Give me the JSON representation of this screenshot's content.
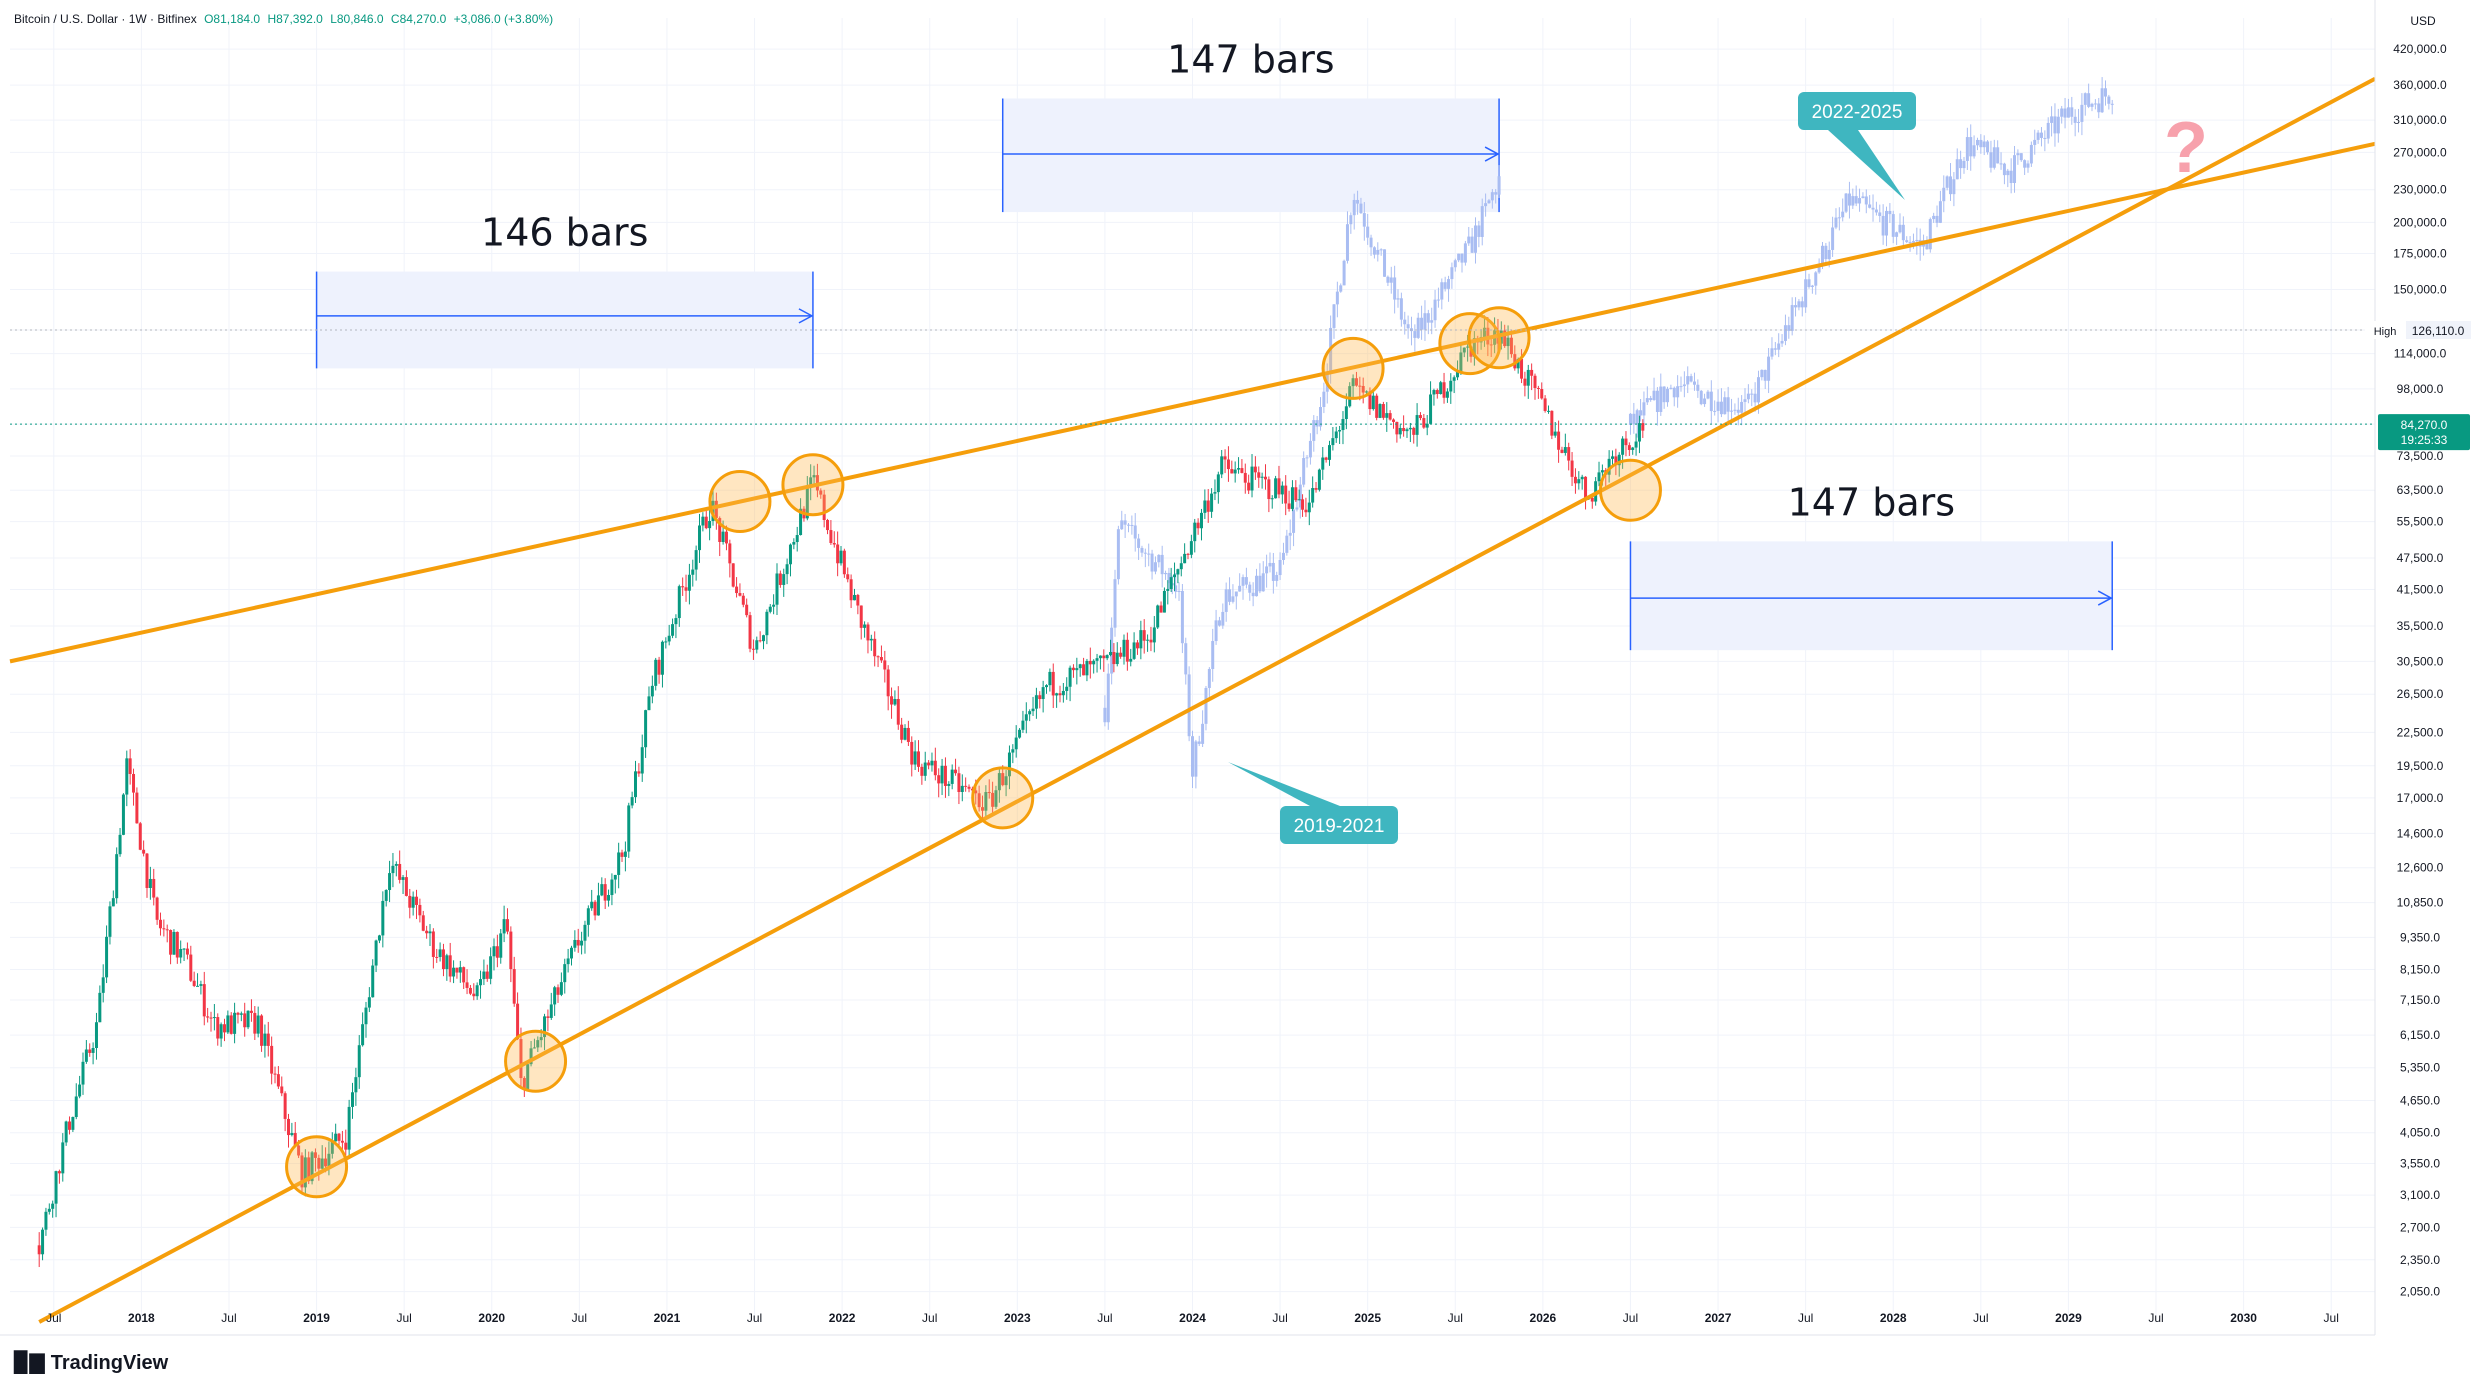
{
  "header": {
    "symbol": "Bitcoin / U.S. Dollar · 1W · Bitfinex",
    "open": "O81,184.0",
    "high": "H87,392.0",
    "low": "L80,846.0",
    "close": "C84,270.0",
    "change": "+3,086.0 (+3.80%)"
  },
  "brand": "TradingView",
  "price_axis": {
    "currency": "USD",
    "ticks": [
      "420,000.0",
      "360,000.0",
      "310,000.0",
      "270,000.0",
      "230,000.0",
      "200,000.0",
      "175,000.0",
      "150,000.0",
      "126,110.0",
      "114,000.0",
      "98,000.0",
      "84,270.0",
      "73,500.0",
      "63,500.0",
      "55,500.0",
      "47,500.0",
      "41,500.0",
      "35,500.0",
      "30,500.0",
      "26,500.0",
      "22,500.0",
      "19,500.0",
      "17,000.0",
      "14,600.0",
      "12,600.0",
      "10,850.0",
      "9,350.0",
      "8,150.0",
      "7,150.0",
      "6,150.0",
      "5,350.0",
      "4,650.0",
      "4,050.0",
      "3,550.0",
      "3,100.0",
      "2,700.0",
      "2,350.0",
      "2,050.0"
    ],
    "high_label": "High",
    "high_value": "126,110.0",
    "last_value": "84,270.0",
    "countdown": "19:25:33"
  },
  "time_axis": {
    "labels": [
      "Jul",
      "2018",
      "Jul",
      "2019",
      "Jul",
      "2020",
      "Jul",
      "2021",
      "Jul",
      "2022",
      "Jul",
      "2023",
      "Jul",
      "2024",
      "Jul",
      "2025",
      "Jul",
      "2026",
      "Jul",
      "2027",
      "Jul",
      "2028",
      "Jul",
      "2029",
      "Jul",
      "2030",
      "Jul"
    ]
  },
  "annotations": {
    "range1": "146 bars",
    "range2": "147 bars",
    "range3": "147 bars",
    "callout1": "2019-2021",
    "callout2": "2022-2025",
    "question": "?"
  },
  "colors": {
    "up": "#089981",
    "down": "#f23645",
    "ghost": "#a9bdf2",
    "trend": "#f59e0b",
    "range": "#2962ff",
    "callout": "#3fb6c0",
    "question": "#f7a1ac"
  },
  "chart_data": {
    "type": "candlestick",
    "interval": "1W",
    "scale": "log",
    "ylim": [
      1800,
      480000
    ],
    "xlim": [
      "2017-04",
      "2030-10"
    ],
    "price_path": [
      {
        "t": "2017-06",
        "close": 2500
      },
      {
        "t": "2017-08",
        "close": 4200
      },
      {
        "t": "2017-10",
        "close": 6500
      },
      {
        "t": "2017-12",
        "close": 19500
      },
      {
        "t": "2018-02",
        "close": 10000
      },
      {
        "t": "2018-04",
        "close": 8500
      },
      {
        "t": "2018-06",
        "close": 6400
      },
      {
        "t": "2018-09",
        "close": 6500
      },
      {
        "t": "2018-12",
        "close": 3400
      },
      {
        "t": "2019-03",
        "close": 4000
      },
      {
        "t": "2019-06",
        "close": 13000
      },
      {
        "t": "2019-09",
        "close": 9000
      },
      {
        "t": "2019-12",
        "close": 7200
      },
      {
        "t": "2020-02",
        "close": 10000
      },
      {
        "t": "2020-03",
        "close": 5000
      },
      {
        "t": "2020-07",
        "close": 9300
      },
      {
        "t": "2020-10",
        "close": 13500
      },
      {
        "t": "2020-12",
        "close": 28000
      },
      {
        "t": "2021-04",
        "close": 60000
      },
      {
        "t": "2021-07",
        "close": 32000
      },
      {
        "t": "2021-11",
        "close": 66000
      },
      {
        "t": "2022-02",
        "close": 38000
      },
      {
        "t": "2022-06",
        "close": 20000
      },
      {
        "t": "2022-11",
        "close": 16500
      },
      {
        "t": "2023-03",
        "close": 27500
      },
      {
        "t": "2023-07",
        "close": 30000
      },
      {
        "t": "2023-10",
        "close": 34000
      },
      {
        "t": "2024-03",
        "close": 70000
      },
      {
        "t": "2024-09",
        "close": 60000
      },
      {
        "t": "2024-12",
        "close": 98000
      },
      {
        "t": "2025-04",
        "close": 80000
      },
      {
        "t": "2025-08",
        "close": 118000
      },
      {
        "t": "2025-10",
        "close": 126110
      },
      {
        "t": "2026-01",
        "close": 90000
      },
      {
        "t": "2026-04",
        "close": 62000
      },
      {
        "t": "2026-06",
        "close": 75000
      },
      {
        "t": "2026-08",
        "close": 84270
      }
    ],
    "projection_2019_2021": [
      {
        "t": "2023-07",
        "close": 25000
      },
      {
        "t": "2023-08",
        "close": 55000
      },
      {
        "t": "2023-12",
        "close": 42000
      },
      {
        "t": "2024-01",
        "close": 19000
      },
      {
        "t": "2024-03",
        "close": 40000
      },
      {
        "t": "2024-07",
        "close": 45000
      },
      {
        "t": "2024-10",
        "close": 100000
      },
      {
        "t": "2024-12",
        "close": 230000
      },
      {
        "t": "2025-04",
        "close": 120000
      },
      {
        "t": "2025-08",
        "close": 180000
      },
      {
        "t": "2025-10",
        "close": 240000
      }
    ],
    "projection_2022_2025": [
      {
        "t": "2026-07",
        "close": 84000
      },
      {
        "t": "2026-10",
        "close": 100000
      },
      {
        "t": "2027-03",
        "close": 90000
      },
      {
        "t": "2027-07",
        "close": 150000
      },
      {
        "t": "2027-10",
        "close": 220000
      },
      {
        "t": "2028-03",
        "close": 180000
      },
      {
        "t": "2028-06",
        "close": 280000
      },
      {
        "t": "2028-09",
        "close": 250000
      },
      {
        "t": "2029-01",
        "close": 320000
      },
      {
        "t": "2029-04",
        "close": 350000
      }
    ],
    "trendlines": [
      {
        "name": "upper",
        "from": {
          "t": "2017-04",
          "price": 30500
        },
        "to": {
          "t": "2030-10",
          "price": 280000
        }
      },
      {
        "name": "lower",
        "from": {
          "t": "2017-06",
          "price": 1800
        },
        "to": {
          "t": "2030-10",
          "price": 370000
        }
      }
    ],
    "touches": [
      {
        "t": "2019-01",
        "price": 3500
      },
      {
        "t": "2020-04",
        "price": 5500
      },
      {
        "t": "2021-06",
        "price": 60500
      },
      {
        "t": "2021-11",
        "price": 65000
      },
      {
        "t": "2022-12",
        "price": 17000
      },
      {
        "t": "2024-12",
        "price": 107000
      },
      {
        "t": "2025-08",
        "price": 119000
      },
      {
        "t": "2025-10",
        "price": 122000
      },
      {
        "t": "2026-07",
        "price": 63500
      }
    ],
    "ranges": [
      {
        "label": "146 bars",
        "from": "2019-01",
        "to": "2021-11",
        "band": [
          107000,
          162000
        ],
        "arrow_price": 134000
      },
      {
        "label": "147 bars",
        "from": "2022-12",
        "to": "2025-10",
        "band": [
          209000,
          340000
        ],
        "arrow_price": 268000
      },
      {
        "label": "147 bars",
        "from": "2026-07",
        "to": "2029-04",
        "band": [
          32000,
          51000
        ],
        "arrow_price": 40000
      }
    ]
  }
}
